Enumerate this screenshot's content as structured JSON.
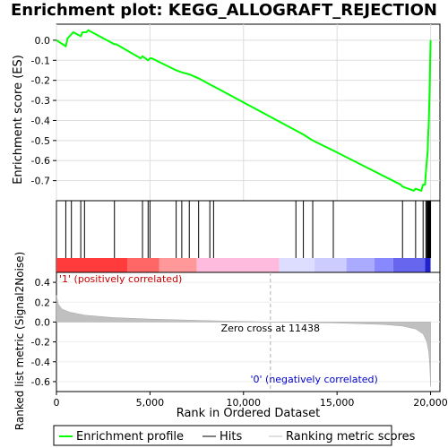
{
  "chart_data": {
    "type": "line",
    "title": "Enrichment plot: KEGG_ALLOGRAFT_REJECTION",
    "x_axis": {
      "label": "Rank in Ordered Dataset",
      "range": [
        0,
        20500
      ],
      "ticks": [
        0,
        5000,
        10000,
        15000,
        20000
      ],
      "tick_labels": [
        "0",
        "5,000",
        "10,000",
        "15,000",
        "20,000"
      ]
    },
    "es_panel": {
      "ylabel": "Enrichment score (ES)",
      "ylim": [
        -0.8,
        0.08
      ],
      "yticks": [
        0.0,
        -0.1,
        -0.2,
        -0.3,
        -0.4,
        -0.5,
        -0.6,
        -0.7
      ],
      "ytick_labels": [
        "0.0",
        "-0.1",
        "-0.2",
        "-0.3",
        "-0.4",
        "-0.5",
        "-0.6",
        "-0.7"
      ],
      "grid": true,
      "series": [
        {
          "name": "Enrichment profile",
          "color": "#00ff00",
          "points": [
            [
              0,
              0.0
            ],
            [
              500,
              -0.03
            ],
            [
              600,
              0.01
            ],
            [
              900,
              0.04
            ],
            [
              1300,
              0.02
            ],
            [
              1400,
              0.04
            ],
            [
              1600,
              0.04
            ],
            [
              1700,
              0.05
            ],
            [
              3100,
              -0.02
            ],
            [
              3200,
              -0.02
            ],
            [
              4500,
              -0.09
            ],
            [
              4600,
              -0.08
            ],
            [
              4900,
              -0.1
            ],
            [
              5000,
              -0.09
            ],
            [
              5100,
              -0.09
            ],
            [
              6400,
              -0.15
            ],
            [
              6700,
              -0.16
            ],
            [
              7100,
              -0.17
            ],
            [
              7600,
              -0.19
            ],
            [
              8200,
              -0.22
            ],
            [
              8400,
              -0.23
            ],
            [
              12800,
              -0.45
            ],
            [
              13200,
              -0.47
            ],
            [
              13700,
              -0.5
            ],
            [
              14800,
              -0.55
            ],
            [
              18400,
              -0.72
            ],
            [
              18500,
              -0.73
            ],
            [
              19100,
              -0.75
            ],
            [
              19200,
              -0.74
            ],
            [
              19500,
              -0.75
            ],
            [
              19600,
              -0.72
            ],
            [
              19700,
              -0.72
            ],
            [
              19750,
              -0.66
            ],
            [
              19800,
              -0.6
            ],
            [
              19850,
              -0.55
            ],
            [
              19870,
              -0.48
            ],
            [
              19900,
              -0.42
            ],
            [
              19920,
              -0.35
            ],
            [
              19940,
              -0.28
            ],
            [
              19960,
              -0.2
            ],
            [
              19980,
              -0.1
            ],
            [
              20000,
              0.0
            ]
          ]
        }
      ]
    },
    "hits_panel": {
      "hits": [
        500,
        800,
        1300,
        1500,
        3100,
        4600,
        4900,
        5000,
        6400,
        6700,
        7100,
        7600,
        8200,
        8400,
        12800,
        13200,
        13700,
        14800,
        18500,
        19200,
        19600,
        19750,
        19800,
        19850,
        19870,
        19900,
        19920,
        19940,
        19960,
        19980,
        20000
      ]
    },
    "color_bar": {
      "segments": [
        {
          "start": 0,
          "end": 3800,
          "color": "#ff3b3b"
        },
        {
          "start": 3800,
          "end": 5500,
          "color": "#ff6666"
        },
        {
          "start": 5500,
          "end": 7500,
          "color": "#ff9999"
        },
        {
          "start": 7500,
          "end": 11900,
          "color": "#ffbbdd"
        },
        {
          "start": 11900,
          "end": 13800,
          "color": "#ddddff"
        },
        {
          "start": 13800,
          "end": 15500,
          "color": "#ccccff"
        },
        {
          "start": 15500,
          "end": 17000,
          "color": "#aaaaff"
        },
        {
          "start": 17000,
          "end": 18000,
          "color": "#8888ff"
        },
        {
          "start": 18000,
          "end": 19700,
          "color": "#6666ee"
        },
        {
          "start": 19700,
          "end": 20000,
          "color": "#2222cc"
        }
      ]
    },
    "metric_panel": {
      "ylabel": "Ranked list metric (Signal2Noise)",
      "ylim": [
        -0.7,
        0.5
      ],
      "yticks": [
        0.4,
        0.2,
        0.0,
        -0.2,
        -0.4,
        -0.6
      ],
      "ytick_labels": [
        "0.4",
        "0.2",
        "0.0",
        "-0.2",
        "-0.4",
        "-0.6"
      ],
      "color": "#c0c0c0",
      "profile": [
        [
          0,
          0.27
        ],
        [
          100,
          0.18
        ],
        [
          300,
          0.13
        ],
        [
          700,
          0.1
        ],
        [
          1500,
          0.07
        ],
        [
          3000,
          0.045
        ],
        [
          5000,
          0.03
        ],
        [
          8000,
          0.015
        ],
        [
          11438,
          0.0
        ],
        [
          15000,
          -0.01
        ],
        [
          17500,
          -0.025
        ],
        [
          18500,
          -0.04
        ],
        [
          19200,
          -0.07
        ],
        [
          19600,
          -0.12
        ],
        [
          19800,
          -0.2
        ],
        [
          19900,
          -0.3
        ],
        [
          19960,
          -0.45
        ],
        [
          20000,
          -0.65
        ]
      ],
      "zero_cross_label": "Zero cross at 11438",
      "zero_cross": 11438,
      "pos_label": "'1' (positively correlated)",
      "neg_label": "'0' (negatively correlated)"
    },
    "legend": {
      "placement": "bottom",
      "items": [
        {
          "label": "Enrichment profile",
          "color": "#00ff00"
        },
        {
          "label": "Hits",
          "color": "#000000"
        },
        {
          "label": "Ranking metric scores",
          "color": "#c0c0c0"
        }
      ]
    }
  }
}
